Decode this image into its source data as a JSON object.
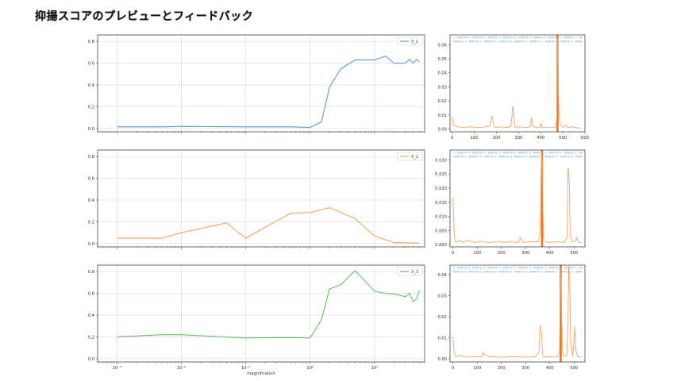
{
  "page": {
    "title": "抑揚スコアのプレビューとフィードバック"
  },
  "chart_data": [
    {
      "type": "line",
      "xscale": "log",
      "xlim": [
        0.0005,
        60
      ],
      "ylim": [
        -0.03,
        0.86
      ],
      "yticks": [
        0.0,
        0.2,
        0.4,
        0.6,
        0.8
      ],
      "ytick_labels": [
        "0.0",
        "0.2",
        "0.4",
        "0.6",
        "0.8"
      ],
      "grid": true,
      "legend_position": "top-right",
      "color": "#5b9bd5",
      "series": [
        {
          "name": "3_1",
          "x": [
            0.001,
            0.005,
            0.01,
            0.1,
            0.5,
            1,
            1.5,
            2,
            3,
            5,
            10,
            15,
            20,
            30,
            35,
            40,
            45,
            50
          ],
          "y": [
            0.015,
            0.015,
            0.02,
            0.015,
            0.015,
            0.01,
            0.06,
            0.38,
            0.55,
            0.63,
            0.63,
            0.665,
            0.6,
            0.6,
            0.635,
            0.6,
            0.635,
            0.615
          ]
        }
      ]
    },
    {
      "type": "line",
      "xscale": "log",
      "xlim": [
        0.0005,
        60
      ],
      "ylim": [
        -0.03,
        0.86
      ],
      "yticks": [
        0.0,
        0.2,
        0.4,
        0.6,
        0.8
      ],
      "ytick_labels": [
        "0.0",
        "0.2",
        "0.4",
        "0.6",
        "0.8"
      ],
      "grid": true,
      "legend_position": "top-right",
      "color": "#f4a460",
      "series": [
        {
          "name": "3_2",
          "x": [
            0.001,
            0.005,
            0.01,
            0.05,
            0.1,
            0.5,
            1,
            2,
            5,
            10,
            20,
            30,
            50
          ],
          "y": [
            0.05,
            0.05,
            0.1,
            0.19,
            0.05,
            0.28,
            0.285,
            0.33,
            0.23,
            0.07,
            0.01,
            0.008,
            0.005
          ]
        }
      ]
    },
    {
      "type": "line",
      "xscale": "log",
      "xlim": [
        0.0005,
        60
      ],
      "ylim": [
        -0.03,
        0.86
      ],
      "yticks": [
        0.0,
        0.2,
        0.4,
        0.6,
        0.8
      ],
      "ytick_labels": [
        "0.0",
        "0.2",
        "0.4",
        "0.6",
        "0.8"
      ],
      "xticks": [
        0.001,
        0.01,
        0.1,
        1,
        10
      ],
      "xtick_labels": [
        "10⁻³",
        "10⁻²",
        "10⁻¹",
        "10⁰",
        "10¹"
      ],
      "xlabel": "magnification",
      "grid": true,
      "legend_position": "top-right",
      "color": "#6abf69",
      "series": [
        {
          "name": "3_3",
          "x": [
            0.001,
            0.005,
            0.01,
            0.1,
            0.5,
            1,
            1.5,
            2,
            3,
            5,
            10,
            15,
            20,
            30,
            35,
            40,
            45,
            50
          ],
          "y": [
            0.2,
            0.22,
            0.22,
            0.19,
            0.195,
            0.19,
            0.36,
            0.64,
            0.68,
            0.81,
            0.62,
            0.6,
            0.595,
            0.57,
            0.6,
            0.525,
            0.55,
            0.63
          ]
        }
      ]
    },
    {
      "type": "line",
      "xlim": [
        -10,
        600
      ],
      "ylim": [
        -0.002,
        0.067
      ],
      "xticks": [
        0,
        100,
        200,
        300,
        400,
        500,
        600
      ],
      "xtick_labels": [
        "0",
        "100",
        "200",
        "300",
        "400",
        "500",
        "600"
      ],
      "yticks": [
        0.0,
        0.01,
        0.02,
        0.03,
        0.04,
        0.05,
        0.06
      ],
      "ytick_labels": [
        "0.00",
        "0.01",
        "0.02",
        "0.03",
        "0.04",
        "0.05",
        "0.06"
      ],
      "grid": false,
      "color": "#f4a460",
      "highlight_color": "#e8751a",
      "highlight_x": [
        476
      ],
      "annotation_color": "#b9d3e6",
      "series": [
        {
          "x": [
            0,
            5,
            15,
            40,
            80,
            120,
            150,
            170,
            178,
            182,
            186,
            195,
            220,
            250,
            265,
            270,
            273,
            277,
            281,
            285,
            300,
            340,
            355,
            358,
            361,
            365,
            375,
            395,
            400,
            403,
            406,
            410,
            420,
            450,
            465,
            470,
            473,
            475,
            477,
            479,
            481,
            485,
            500,
            510,
            515,
            520,
            540,
            560,
            580
          ],
          "y": [
            0.009,
            0.003,
            0.002,
            0.001,
            0.0015,
            0.001,
            0.0015,
            0.002,
            0.008,
            0.009,
            0.003,
            0.001,
            0.0015,
            0.001,
            0.002,
            0.009,
            0.016,
            0.014,
            0.004,
            0.001,
            0.0015,
            0.001,
            0.002,
            0.008,
            0.007,
            0.002,
            0.001,
            0.001,
            0.004,
            0.0035,
            0.001,
            0.001,
            0.001,
            0.001,
            0.001,
            0.003,
            0.008,
            0.065,
            0.06,
            0.045,
            0.02,
            0.005,
            0.001,
            0.002,
            0.003,
            0.001,
            0.0015,
            0.001,
            0.0005
          ]
        }
      ]
    },
    {
      "type": "line",
      "xlim": [
        -12,
        545
      ],
      "ylim": [
        -0.0008,
        0.0335
      ],
      "xticks": [
        0,
        100,
        200,
        300,
        400,
        500
      ],
      "xtick_labels": [
        "0",
        "100",
        "200",
        "300",
        "400",
        "500"
      ],
      "yticks": [
        0.0,
        0.005,
        0.01,
        0.015,
        0.02,
        0.025,
        0.03
      ],
      "ytick_labels": [
        "0.000",
        "0.005",
        "0.010",
        "0.015",
        "0.020",
        "0.025",
        "0.030"
      ],
      "grid": false,
      "color": "#f4a460",
      "highlight_color": "#e8751a",
      "highlight_x": [
        368
      ],
      "annotation_color": "#b9d3e6",
      "series": [
        {
          "x": [
            0,
            6,
            12,
            25,
            40,
            60,
            90,
            120,
            150,
            180,
            210,
            240,
            270,
            278,
            283,
            290,
            320,
            350,
            358,
            362,
            366,
            369,
            372,
            375,
            380,
            400,
            430,
            460,
            472,
            475,
            478,
            481,
            484,
            490,
            505,
            512,
            516,
            520,
            530
          ],
          "y": [
            0.0165,
            0.003,
            0.0008,
            0.0015,
            0.0009,
            0.0014,
            0.0008,
            0.0012,
            0.0007,
            0.0011,
            0.0008,
            0.001,
            0.0008,
            0.0025,
            0.0018,
            0.0008,
            0.001,
            0.001,
            0.003,
            0.012,
            0.033,
            0.03,
            0.01,
            0.002,
            0.001,
            0.0008,
            0.001,
            0.0008,
            0.003,
            0.027,
            0.0265,
            0.02,
            0.004,
            0.001,
            0.0012,
            0.0025,
            0.0012,
            0.0008,
            0.0008
          ]
        }
      ]
    },
    {
      "type": "line",
      "xlim": [
        -12,
        545
      ],
      "ylim": [
        -0.0015,
        0.0445
      ],
      "xticks": [
        0,
        100,
        200,
        300,
        400,
        500
      ],
      "xtick_labels": [
        "0",
        "100",
        "200",
        "300",
        "400",
        "500"
      ],
      "yticks": [
        0.0,
        0.01,
        0.02,
        0.03,
        0.04
      ],
      "ytick_labels": [
        "0.00",
        "0.01",
        "0.02",
        "0.03",
        "0.04"
      ],
      "grid": false,
      "color": "#f4a460",
      "highlight_color": "#e8751a",
      "highlight_x": [
        445
      ],
      "annotation_color": "#b9d3e6",
      "series": [
        {
          "x": [
            0,
            5,
            12,
            30,
            60,
            90,
            120,
            125,
            130,
            150,
            200,
            250,
            300,
            340,
            355,
            360,
            363,
            366,
            369,
            372,
            376,
            400,
            430,
            440,
            443,
            446,
            449,
            452,
            460,
            470,
            475,
            478,
            482,
            486,
            495,
            500,
            503,
            507,
            515,
            530
          ],
          "y": [
            0.011,
            0.003,
            0.001,
            0.0015,
            0.0008,
            0.001,
            0.001,
            0.003,
            0.002,
            0.001,
            0.0008,
            0.001,
            0.0008,
            0.001,
            0.003,
            0.016,
            0.013,
            0.012,
            0.004,
            0.001,
            0.0008,
            0.001,
            0.0008,
            0.003,
            0.028,
            0.043,
            0.02,
            0.004,
            0.001,
            0.002,
            0.015,
            0.044,
            0.04,
            0.008,
            0.001,
            0.01,
            0.015,
            0.005,
            0.001,
            0.0008
          ]
        }
      ]
    }
  ]
}
